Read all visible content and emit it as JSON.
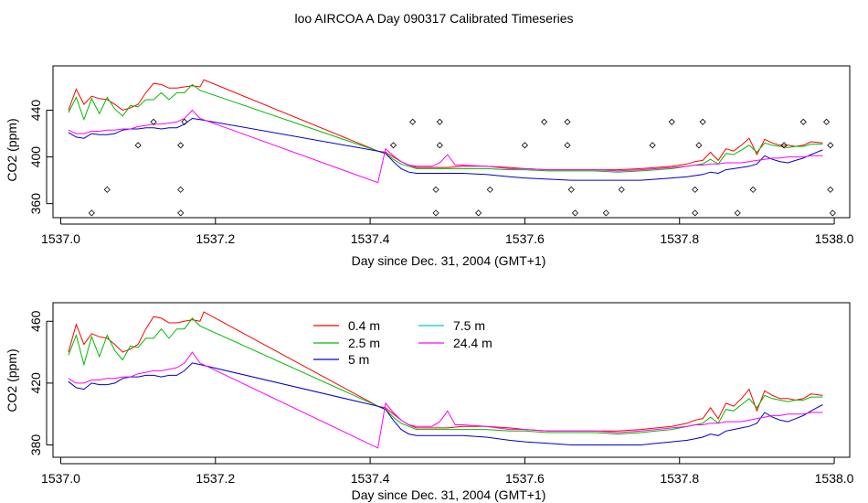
{
  "title": "loo AIRCOA A  Day 090317  Calibrated Timeseries",
  "chart_data": [
    {
      "type": "line",
      "xlabel": "Day since Dec. 31, 2004 (GMT+1)",
      "ylabel": "CO2 (ppm)",
      "xlim": [
        1536.99,
        1538.02
      ],
      "ylim": [
        348,
        478
      ],
      "xticks": [
        "1537.0",
        "1537.2",
        "1537.4",
        "1537.6",
        "1537.8",
        "1538.0"
      ],
      "yticks": [
        "360",
        "400",
        "440"
      ],
      "series": [
        {
          "name": "0.4 m",
          "color": "#ff0000",
          "values": [
            [
              1537.01,
              440
            ],
            [
              1537.02,
              458
            ],
            [
              1537.03,
              445
            ],
            [
              1537.04,
              452
            ],
            [
              1537.05,
              450
            ],
            [
              1537.06,
              449
            ],
            [
              1537.07,
              445
            ],
            [
              1537.08,
              440
            ],
            [
              1537.09,
              442
            ],
            [
              1537.1,
              445
            ],
            [
              1537.11,
              455
            ],
            [
              1537.12,
              463
            ],
            [
              1537.13,
              462
            ],
            [
              1537.14,
              459
            ],
            [
              1537.15,
              459
            ],
            [
              1537.16,
              460
            ],
            [
              1537.17,
              461
            ],
            [
              1537.18,
              460
            ],
            [
              1537.185,
              466
            ],
            [
              1537.41,
              405
            ],
            [
              1537.42,
              404
            ],
            [
              1537.43,
              400
            ],
            [
              1537.44,
              396
            ],
            [
              1537.45,
              393
            ],
            [
              1537.46,
              391
            ],
            [
              1537.48,
              391
            ],
            [
              1537.5,
              391
            ],
            [
              1537.52,
              392
            ],
            [
              1537.55,
              392
            ],
            [
              1537.58,
              391
            ],
            [
              1537.6,
              390
            ],
            [
              1537.63,
              389
            ],
            [
              1537.66,
              389
            ],
            [
              1537.69,
              389
            ],
            [
              1537.72,
              389
            ],
            [
              1537.75,
              390
            ],
            [
              1537.77,
              391
            ],
            [
              1537.79,
              392
            ],
            [
              1537.81,
              394
            ],
            [
              1537.82,
              396
            ],
            [
              1537.83,
              397
            ],
            [
              1537.84,
              404
            ],
            [
              1537.85,
              397
            ],
            [
              1537.86,
              407
            ],
            [
              1537.87,
              405
            ],
            [
              1537.88,
              410
            ],
            [
              1537.89,
              416
            ],
            [
              1537.9,
              402
            ],
            [
              1537.91,
              415
            ],
            [
              1537.92,
              412
            ],
            [
              1537.93,
              410
            ],
            [
              1537.94,
              410
            ],
            [
              1537.95,
              409
            ],
            [
              1537.96,
              410
            ],
            [
              1537.97,
              413
            ],
            [
              1537.985,
              412
            ]
          ]
        },
        {
          "name": "2.5 m",
          "color": "#00bb00",
          "values": [
            [
              1537.01,
              438
            ],
            [
              1537.02,
              451
            ],
            [
              1537.03,
              432
            ],
            [
              1537.04,
              450
            ],
            [
              1537.05,
              437
            ],
            [
              1537.06,
              451
            ],
            [
              1537.07,
              441
            ],
            [
              1537.08,
              435
            ],
            [
              1537.09,
              444
            ],
            [
              1537.1,
              443
            ],
            [
              1537.11,
              449
            ],
            [
              1537.12,
              449
            ],
            [
              1537.13,
              455
            ],
            [
              1537.14,
              449
            ],
            [
              1537.15,
              455
            ],
            [
              1537.16,
              455
            ],
            [
              1537.17,
              462
            ],
            [
              1537.18,
              457
            ],
            [
              1537.41,
              405
            ],
            [
              1537.42,
              403
            ],
            [
              1537.43,
              398
            ],
            [
              1537.44,
              394
            ],
            [
              1537.45,
              392
            ],
            [
              1537.46,
              390
            ],
            [
              1537.48,
              390
            ],
            [
              1537.5,
              390
            ],
            [
              1537.52,
              390
            ],
            [
              1537.55,
              390
            ],
            [
              1537.58,
              389
            ],
            [
              1537.6,
              389
            ],
            [
              1537.63,
              388
            ],
            [
              1537.66,
              388
            ],
            [
              1537.69,
              388
            ],
            [
              1537.72,
              387
            ],
            [
              1537.75,
              388
            ],
            [
              1537.77,
              389
            ],
            [
              1537.79,
              390
            ],
            [
              1537.81,
              392
            ],
            [
              1537.82,
              393
            ],
            [
              1537.83,
              394
            ],
            [
              1537.84,
              398
            ],
            [
              1537.85,
              394
            ],
            [
              1537.86,
              403
            ],
            [
              1537.87,
              402
            ],
            [
              1537.88,
              406
            ],
            [
              1537.89,
              410
            ],
            [
              1537.9,
              404
            ],
            [
              1537.91,
              412
            ],
            [
              1537.92,
              410
            ],
            [
              1537.93,
              409
            ],
            [
              1537.94,
              408
            ],
            [
              1537.95,
              409
            ],
            [
              1537.96,
              409
            ],
            [
              1537.97,
              411
            ],
            [
              1537.985,
              411
            ]
          ]
        },
        {
          "name": "5 m",
          "color": "#0000cc",
          "values": [
            [
              1537.01,
              421
            ],
            [
              1537.02,
              417
            ],
            [
              1537.03,
              416
            ],
            [
              1537.04,
              420
            ],
            [
              1537.05,
              419
            ],
            [
              1537.06,
              419
            ],
            [
              1537.07,
              420
            ],
            [
              1537.08,
              423
            ],
            [
              1537.09,
              424
            ],
            [
              1537.1,
              424
            ],
            [
              1537.11,
              425
            ],
            [
              1537.12,
              425
            ],
            [
              1537.13,
              424
            ],
            [
              1537.14,
              425
            ],
            [
              1537.15,
              425
            ],
            [
              1537.16,
              428
            ],
            [
              1537.17,
              433
            ],
            [
              1537.18,
              432
            ],
            [
              1537.41,
              405
            ],
            [
              1537.42,
              403
            ],
            [
              1537.43,
              396
            ],
            [
              1537.44,
              390
            ],
            [
              1537.45,
              387
            ],
            [
              1537.46,
              386
            ],
            [
              1537.48,
              386
            ],
            [
              1537.5,
              386
            ],
            [
              1537.52,
              386
            ],
            [
              1537.55,
              385
            ],
            [
              1537.58,
              383
            ],
            [
              1537.6,
              382
            ],
            [
              1537.63,
              381
            ],
            [
              1537.66,
              380
            ],
            [
              1537.69,
              380
            ],
            [
              1537.72,
              380
            ],
            [
              1537.75,
              380
            ],
            [
              1537.77,
              381
            ],
            [
              1537.79,
              382
            ],
            [
              1537.81,
              383
            ],
            [
              1537.82,
              384
            ],
            [
              1537.83,
              385
            ],
            [
              1537.84,
              387
            ],
            [
              1537.85,
              386
            ],
            [
              1537.86,
              389
            ],
            [
              1537.87,
              390
            ],
            [
              1537.88,
              391
            ],
            [
              1537.89,
              392
            ],
            [
              1537.9,
              394
            ],
            [
              1537.91,
              401
            ],
            [
              1537.92,
              398
            ],
            [
              1537.93,
              396
            ],
            [
              1537.94,
              395
            ],
            [
              1537.95,
              397
            ],
            [
              1537.96,
              399
            ],
            [
              1537.97,
              402
            ],
            [
              1537.985,
              406
            ]
          ]
        },
        {
          "name": "7.5 m",
          "color": "#00cccc",
          "values": []
        },
        {
          "name": "24.4 m",
          "color": "#ff00ff",
          "values": [
            [
              1537.01,
              423
            ],
            [
              1537.02,
              420
            ],
            [
              1537.03,
              420
            ],
            [
              1537.04,
              422
            ],
            [
              1537.05,
              422
            ],
            [
              1537.06,
              423
            ],
            [
              1537.07,
              423
            ],
            [
              1537.08,
              424
            ],
            [
              1537.09,
              424
            ],
            [
              1537.1,
              426
            ],
            [
              1537.11,
              427
            ],
            [
              1537.12,
              428
            ],
            [
              1537.13,
              428
            ],
            [
              1537.14,
              429
            ],
            [
              1537.15,
              430
            ],
            [
              1537.16,
              433
            ],
            [
              1537.17,
              440
            ],
            [
              1537.18,
              433
            ],
            [
              1537.41,
              378
            ],
            [
              1537.42,
              407
            ],
            [
              1537.43,
              401
            ],
            [
              1537.44,
              396
            ],
            [
              1537.45,
              393
            ],
            [
              1537.46,
              392
            ],
            [
              1537.48,
              392
            ],
            [
              1537.49,
              395
            ],
            [
              1537.5,
              402
            ],
            [
              1537.51,
              393
            ],
            [
              1537.52,
              393
            ],
            [
              1537.55,
              392
            ],
            [
              1537.58,
              390
            ],
            [
              1537.6,
              390
            ],
            [
              1537.63,
              389
            ],
            [
              1537.66,
              389
            ],
            [
              1537.69,
              389
            ],
            [
              1537.72,
              388
            ],
            [
              1537.75,
              389
            ],
            [
              1537.77,
              390
            ],
            [
              1537.79,
              391
            ],
            [
              1537.81,
              392
            ],
            [
              1537.82,
              393
            ],
            [
              1537.83,
              393
            ],
            [
              1537.84,
              394
            ],
            [
              1537.85,
              394
            ],
            [
              1537.86,
              395
            ],
            [
              1537.87,
              395
            ],
            [
              1537.88,
              395
            ],
            [
              1537.89,
              396
            ],
            [
              1537.9,
              397
            ],
            [
              1537.91,
              398
            ],
            [
              1537.92,
              399
            ],
            [
              1537.93,
              399
            ],
            [
              1537.94,
              400
            ],
            [
              1537.95,
              400
            ],
            [
              1537.96,
              400
            ],
            [
              1537.97,
              401
            ],
            [
              1537.985,
              401
            ]
          ]
        }
      ],
      "markers": {
        "style": "diamond",
        "points": [
          [
            1537.04,
            352
          ],
          [
            1537.06,
            372
          ],
          [
            1537.1,
            410
          ],
          [
            1537.12,
            430
          ],
          [
            1537.155,
            352
          ],
          [
            1537.155,
            372
          ],
          [
            1537.155,
            410
          ],
          [
            1537.16,
            430
          ],
          [
            1537.43,
            410
          ],
          [
            1537.455,
            430
          ],
          [
            1537.485,
            352
          ],
          [
            1537.485,
            372
          ],
          [
            1537.49,
            410
          ],
          [
            1537.49,
            430
          ],
          [
            1537.54,
            352
          ],
          [
            1537.555,
            372
          ],
          [
            1537.6,
            410
          ],
          [
            1537.625,
            430
          ],
          [
            1537.655,
            430
          ],
          [
            1537.655,
            410
          ],
          [
            1537.66,
            372
          ],
          [
            1537.665,
            352
          ],
          [
            1537.705,
            352
          ],
          [
            1537.725,
            372
          ],
          [
            1537.765,
            410
          ],
          [
            1537.79,
            430
          ],
          [
            1537.82,
            352
          ],
          [
            1537.82,
            372
          ],
          [
            1537.825,
            410
          ],
          [
            1537.83,
            430
          ],
          [
            1537.875,
            352
          ],
          [
            1537.895,
            372
          ],
          [
            1537.935,
            410
          ],
          [
            1537.96,
            430
          ],
          [
            1537.99,
            430
          ],
          [
            1537.995,
            410
          ],
          [
            1537.995,
            372
          ],
          [
            1537.998,
            352
          ]
        ]
      }
    },
    {
      "type": "line",
      "xlabel": "Day since Dec. 31, 2004 (GMT+1)",
      "ylabel": "CO2 (ppm)",
      "xlim": [
        1536.99,
        1538.02
      ],
      "ylim": [
        372,
        472
      ],
      "xticks": [
        "1537.0",
        "1537.2",
        "1537.4",
        "1537.6",
        "1537.8",
        "1538.0"
      ],
      "yticks": [
        "380",
        "420",
        "460"
      ],
      "legend": "top-center",
      "series_ref": "same as panel 1 series (0.4 m, 2.5 m, 5 m, 7.5 m, 24.4 m)"
    }
  ]
}
